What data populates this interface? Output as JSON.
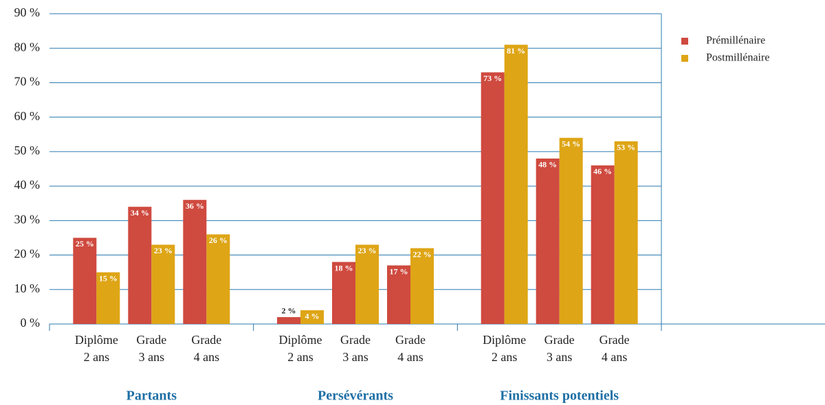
{
  "chart_data": {
    "type": "bar",
    "groups": [
      {
        "name": "Partants",
        "categories": [
          [
            "Diplôme",
            "2 ans"
          ],
          [
            "Grade",
            "3 ans"
          ],
          [
            "Grade",
            "4 ans"
          ]
        ]
      },
      {
        "name": "Persévérants",
        "categories": [
          [
            "Diplôme",
            "2 ans"
          ],
          [
            "Grade",
            "3 ans"
          ],
          [
            "Grade",
            "4 ans"
          ]
        ]
      },
      {
        "name": "Finissants potentiels",
        "categories": [
          [
            "Diplôme",
            "2 ans"
          ],
          [
            "Grade",
            "3 ans"
          ],
          [
            "Grade",
            "4 ans"
          ]
        ]
      }
    ],
    "series": [
      {
        "name": "Prémillénaire",
        "color": "#cf4a3f",
        "values": [
          25,
          34,
          36,
          2,
          18,
          17,
          73,
          48,
          46
        ],
        "value_labels": [
          "25 %",
          "34 %",
          "36 %",
          "2 %",
          "18 %",
          "17 %",
          "73 %",
          "48 %",
          "46 %"
        ]
      },
      {
        "name": "Postmillénaire",
        "color": "#dea516",
        "values": [
          15,
          23,
          26,
          4,
          23,
          22,
          81,
          54,
          53
        ],
        "value_labels": [
          "15 %",
          "23 %",
          "26 %",
          "4 %",
          "23 %",
          "22 %",
          "81 %",
          "54 %",
          "53 %"
        ]
      }
    ],
    "ylim": [
      0,
      90
    ],
    "yticks": [
      {
        "value": 0,
        "label": "0 %"
      },
      {
        "value": 10,
        "label": "10 %"
      },
      {
        "value": 20,
        "label": "20 %"
      },
      {
        "value": 30,
        "label": "30 %"
      },
      {
        "value": 40,
        "label": "40 %"
      },
      {
        "value": 50,
        "label": "50 %"
      },
      {
        "value": 60,
        "label": "60 %"
      },
      {
        "value": 70,
        "label": "70 %"
      },
      {
        "value": 80,
        "label": "80 %"
      },
      {
        "value": 90,
        "label": "90 %"
      }
    ],
    "grid": true,
    "legend": "top-right"
  }
}
